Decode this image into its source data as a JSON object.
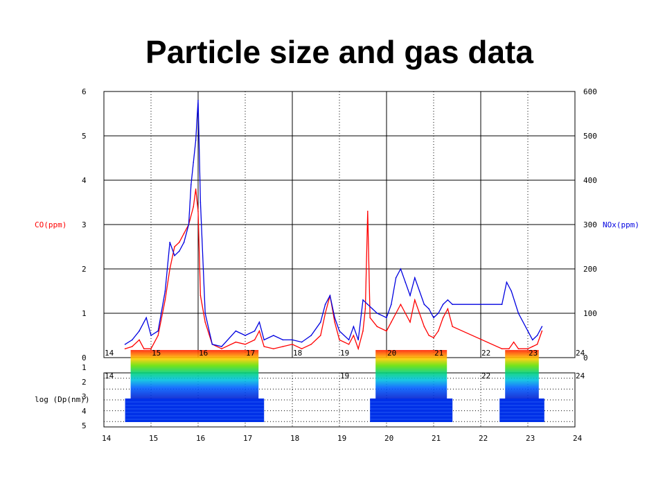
{
  "slide": {
    "title": "Particle size and gas data"
  },
  "colors": {
    "co": "#ff0000",
    "nox": "#0000e0",
    "grid": "#000000",
    "axis_text": "#000000"
  },
  "chart_data": [
    {
      "type": "line",
      "title": "",
      "xlabel": "",
      "x_ticks": [
        "14",
        "15",
        "16",
        "17",
        "18",
        "19",
        "20",
        "21",
        "22",
        "23",
        "24"
      ],
      "xlim": [
        14,
        24
      ],
      "ylabel_left": "CO(ppm)",
      "ylabel_right": "NOx(ppm)",
      "yleft_ticks": [
        "0",
        "1",
        "2",
        "3",
        "4",
        "5",
        "6"
      ],
      "yright_ticks": [
        "0",
        "100",
        "200",
        "300",
        "400",
        "500",
        "600"
      ],
      "ylim_left": [
        0,
        6
      ],
      "ylim_right": [
        0,
        600
      ],
      "grid": true,
      "series": [
        {
          "name": "CO(ppm)",
          "axis": "left",
          "color": "#ff0000",
          "points": [
            [
              14.45,
              0.2
            ],
            [
              14.6,
              0.25
            ],
            [
              14.75,
              0.4
            ],
            [
              14.85,
              0.2
            ],
            [
              15.0,
              0.2
            ],
            [
              15.15,
              0.5
            ],
            [
              15.3,
              1.3
            ],
            [
              15.4,
              2.0
            ],
            [
              15.5,
              2.5
            ],
            [
              15.6,
              2.6
            ],
            [
              15.7,
              2.8
            ],
            [
              15.8,
              3.0
            ],
            [
              15.9,
              3.4
            ],
            [
              15.95,
              3.8
            ],
            [
              16.0,
              3.3
            ],
            [
              16.05,
              1.4
            ],
            [
              16.15,
              0.8
            ],
            [
              16.3,
              0.3
            ],
            [
              16.5,
              0.2
            ],
            [
              16.8,
              0.35
            ],
            [
              17.0,
              0.3
            ],
            [
              17.2,
              0.4
            ],
            [
              17.3,
              0.6
            ],
            [
              17.4,
              0.25
            ],
            [
              17.6,
              0.2
            ],
            [
              17.8,
              0.25
            ],
            [
              18.0,
              0.3
            ],
            [
              18.2,
              0.2
            ],
            [
              18.4,
              0.3
            ],
            [
              18.6,
              0.5
            ],
            [
              18.7,
              1.0
            ],
            [
              18.8,
              1.4
            ],
            [
              18.9,
              0.8
            ],
            [
              19.0,
              0.4
            ],
            [
              19.2,
              0.3
            ],
            [
              19.3,
              0.5
            ],
            [
              19.4,
              0.2
            ],
            [
              19.5,
              0.6
            ],
            [
              19.55,
              1.1
            ],
            [
              19.6,
              3.3
            ],
            [
              19.65,
              0.9
            ],
            [
              19.8,
              0.7
            ],
            [
              20.0,
              0.6
            ],
            [
              20.1,
              0.8
            ],
            [
              20.2,
              1.0
            ],
            [
              20.3,
              1.2
            ],
            [
              20.4,
              1.0
            ],
            [
              20.5,
              0.8
            ],
            [
              20.6,
              1.3
            ],
            [
              20.7,
              1.0
            ],
            [
              20.8,
              0.7
            ],
            [
              20.9,
              0.5
            ],
            [
              21.0,
              0.45
            ],
            [
              21.1,
              0.6
            ],
            [
              21.2,
              0.9
            ],
            [
              21.3,
              1.1
            ],
            [
              21.4,
              0.7
            ],
            [
              22.45,
              0.2
            ],
            [
              22.6,
              0.2
            ],
            [
              22.7,
              0.35
            ],
            [
              22.8,
              0.2
            ],
            [
              23.0,
              0.2
            ],
            [
              23.1,
              0.25
            ],
            [
              23.2,
              0.3
            ],
            [
              23.3,
              0.6
            ]
          ]
        },
        {
          "name": "NOx(ppm)",
          "axis": "right",
          "color": "#0000e0",
          "points": [
            [
              14.45,
              30
            ],
            [
              14.6,
              40
            ],
            [
              14.75,
              60
            ],
            [
              14.9,
              90
            ],
            [
              15.0,
              50
            ],
            [
              15.15,
              60
            ],
            [
              15.3,
              150
            ],
            [
              15.4,
              260
            ],
            [
              15.5,
              230
            ],
            [
              15.6,
              240
            ],
            [
              15.7,
              260
            ],
            [
              15.8,
              300
            ],
            [
              15.85,
              390
            ],
            [
              15.9,
              440
            ],
            [
              15.95,
              490
            ],
            [
              16.0,
              580
            ],
            [
              16.05,
              350
            ],
            [
              16.15,
              100
            ],
            [
              16.3,
              30
            ],
            [
              16.5,
              25
            ],
            [
              16.8,
              60
            ],
            [
              17.0,
              50
            ],
            [
              17.2,
              60
            ],
            [
              17.3,
              80
            ],
            [
              17.4,
              40
            ],
            [
              17.6,
              50
            ],
            [
              17.8,
              40
            ],
            [
              18.0,
              40
            ],
            [
              18.2,
              35
            ],
            [
              18.4,
              50
            ],
            [
              18.6,
              80
            ],
            [
              18.7,
              120
            ],
            [
              18.8,
              140
            ],
            [
              18.9,
              90
            ],
            [
              19.0,
              60
            ],
            [
              19.2,
              40
            ],
            [
              19.3,
              70
            ],
            [
              19.4,
              40
            ],
            [
              19.5,
              130
            ],
            [
              19.6,
              120
            ],
            [
              19.7,
              110
            ],
            [
              19.8,
              100
            ],
            [
              20.0,
              90
            ],
            [
              20.1,
              120
            ],
            [
              20.2,
              180
            ],
            [
              20.3,
              200
            ],
            [
              20.4,
              170
            ],
            [
              20.5,
              140
            ],
            [
              20.6,
              180
            ],
            [
              20.7,
              150
            ],
            [
              20.8,
              120
            ],
            [
              20.9,
              110
            ],
            [
              21.0,
              90
            ],
            [
              21.1,
              100
            ],
            [
              21.2,
              120
            ],
            [
              21.3,
              130
            ],
            [
              21.4,
              120
            ],
            [
              22.45,
              120
            ],
            [
              22.55,
              170
            ],
            [
              22.65,
              150
            ],
            [
              22.8,
              100
            ],
            [
              23.0,
              60
            ],
            [
              23.1,
              40
            ],
            [
              23.2,
              50
            ],
            [
              23.3,
              70
            ]
          ]
        }
      ]
    },
    {
      "type": "heatmap",
      "ylabel": "log (Dp(nm))",
      "y_ticks": [
        "1",
        "2",
        "3",
        "4",
        "5"
      ],
      "x_ticks": [
        "14",
        "15",
        "16",
        "17",
        "18",
        "19",
        "20",
        "21",
        "22",
        "23",
        "24"
      ],
      "xlim": [
        14,
        24
      ],
      "top_axis_ticks": [
        "14",
        "15",
        "16",
        "17",
        "18",
        "19",
        "20",
        "21",
        "22",
        "23",
        "24"
      ],
      "grid": true
    }
  ]
}
